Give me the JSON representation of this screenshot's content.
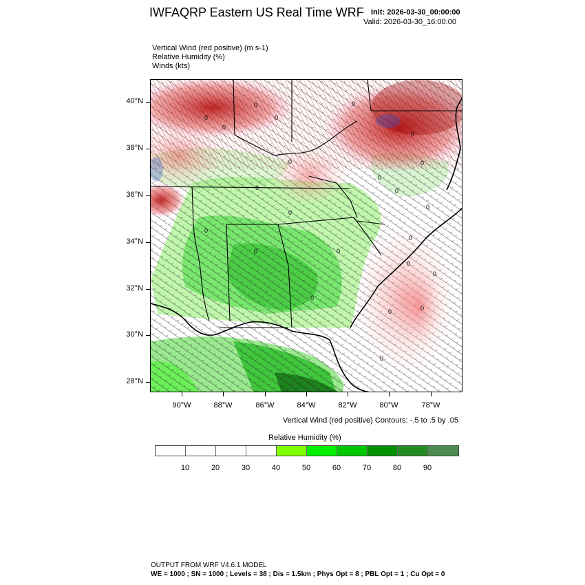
{
  "header": {
    "title": "IWFAQRP Eastern US Real Time WRF",
    "init": "Init: 2026-03-30_00:00:00",
    "valid": "Valid: 2026-03-30_16:00:00"
  },
  "fields": [
    "Vertical Wind (red positive)   (m s-1)",
    "Relative Humidity   (%)",
    "Winds   (kts)"
  ],
  "map": {
    "lat_labels": [
      "40°N",
      "38°N",
      "36°N",
      "34°N",
      "32°N",
      "30°N",
      "28°N"
    ],
    "lon_labels": [
      "90°W",
      "88°W",
      "86°W",
      "84°W",
      "82°W",
      "80°W",
      "78°W"
    ],
    "lat_values": [
      40,
      38,
      36,
      34,
      32,
      30,
      28
    ],
    "lon_values": [
      -90,
      -88,
      -86,
      -84,
      -82,
      -80,
      -78
    ],
    "contour_label": "0",
    "colors": {
      "positive_vertical_wind": "#cc0000",
      "negative_vertical_wind": "#3355cc",
      "wind_barbs": "#222222",
      "state_borders": "#000000"
    }
  },
  "contour_note": "Vertical Wind (red positive) Contours: -.5 to .5 by .05",
  "legend": {
    "title": "Relative Humidity  (%)",
    "labels": [
      "10",
      "20",
      "30",
      "40",
      "50",
      "60",
      "70",
      "80",
      "90"
    ],
    "colors": [
      "#ffffff",
      "#ffffff",
      "#ffffff",
      "#ffffff",
      "#80ff00",
      "#00f000",
      "#00c800",
      "#009000",
      "#228b22",
      "#4d8b50"
    ]
  },
  "footer": {
    "line1": "OUTPUT FROM WRF V4.6.1 MODEL",
    "line2": "WE = 1000 ; SN = 1000 ; Levels = 38 ; Dis = 1.5km ; Phys Opt = 8 ; PBL Opt = 1 ; Cu Opt = 0"
  }
}
